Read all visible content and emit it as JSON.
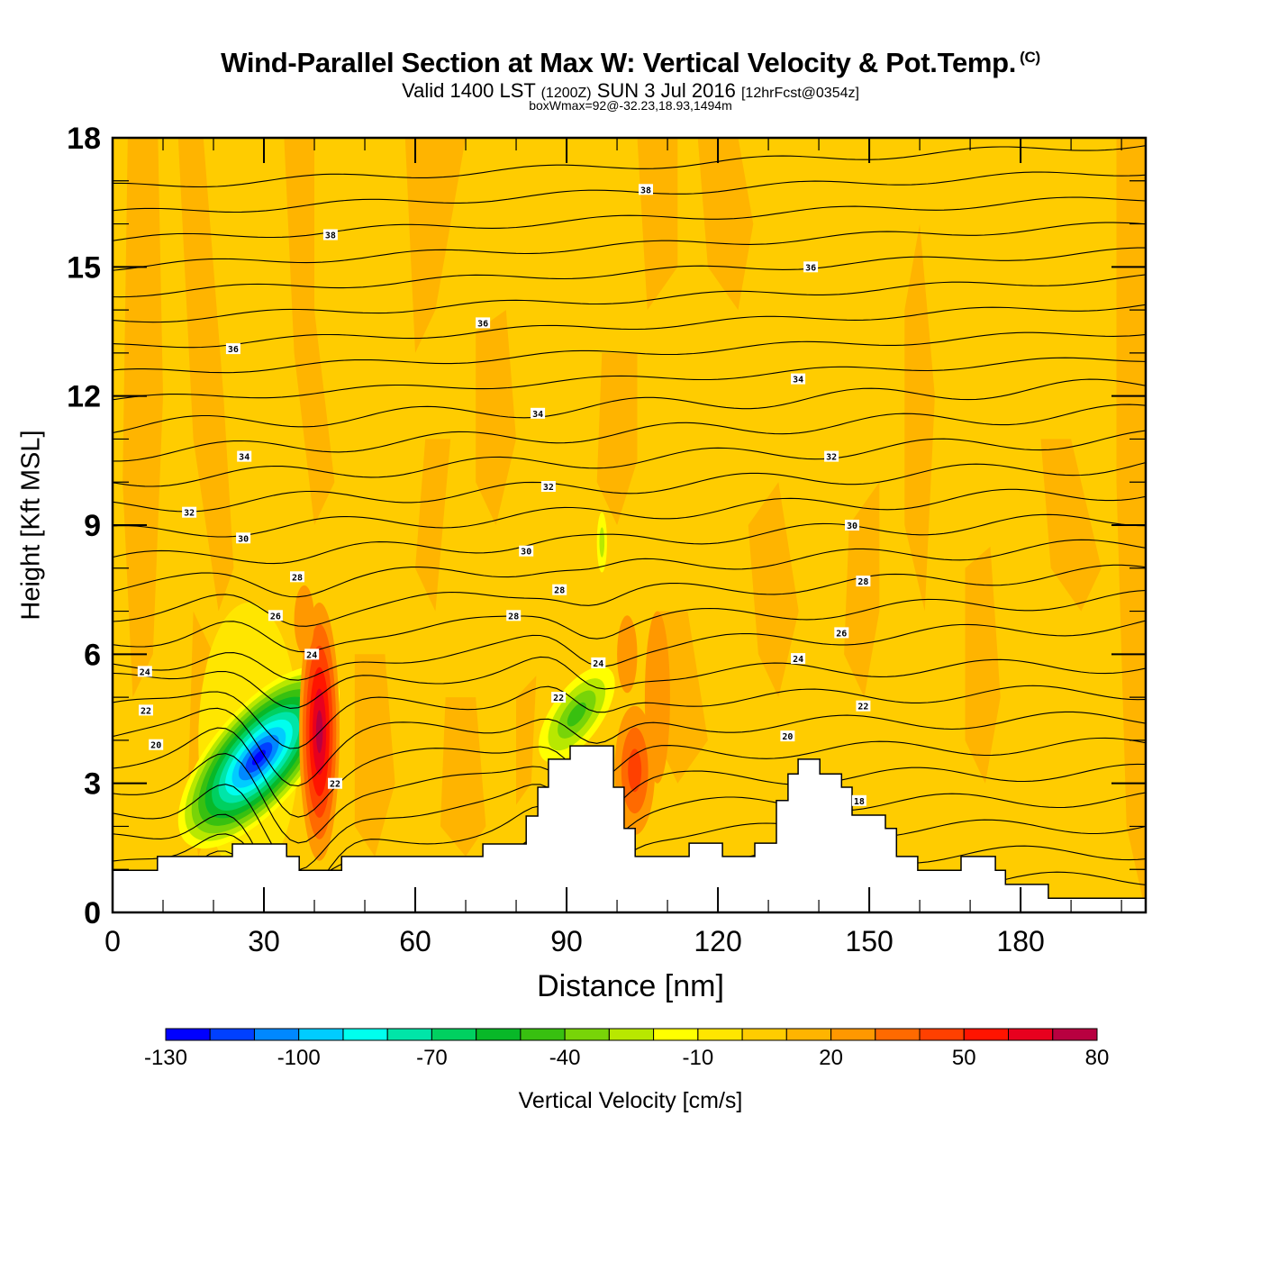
{
  "header": {
    "title": "Wind-Parallel Section at Max W: Vertical Velocity & Pot.Temp.",
    "copyright": "(C)",
    "valid_prefix": "Valid 1400 LST",
    "valid_utc": "(1200Z)",
    "valid_date": "SUN 3 Jul 2016",
    "forecast": "[12hrFcst@0354z]",
    "boxwmax": "boxWmax=92@-32.23,18.93,1494m"
  },
  "chart_data": {
    "type": "heatmap",
    "title": "Wind-Parallel Section at Max W: Vertical Velocity & Pot.Temp.",
    "xlabel": "Distance [nm]",
    "ylabel": "Height [Kft MSL]",
    "xlim": [
      0,
      204.8
    ],
    "ylim": [
      0,
      18
    ],
    "x_ticks": [
      "0",
      "30",
      "60",
      "90",
      "120",
      "150",
      "180"
    ],
    "x_tick_values": [
      0,
      30,
      60,
      90,
      120,
      150,
      180
    ],
    "y_ticks": [
      "0",
      "3",
      "6",
      "9",
      "12",
      "15",
      "18"
    ],
    "y_tick_values": [
      0,
      3,
      6,
      9,
      12,
      15,
      18
    ],
    "colorbar": {
      "title": "Vertical Velocity [cm/s]",
      "min": -130,
      "max": 80,
      "step": 10,
      "tick_labels": [
        "-130",
        "-100",
        "-70",
        "-40",
        "-10",
        "20",
        "50",
        "80"
      ],
      "tick_values": [
        -130,
        -100,
        -70,
        -40,
        -10,
        20,
        50,
        80
      ],
      "colors": [
        "#0000ff",
        "#0040ff",
        "#0088ff",
        "#00ccff",
        "#00ffee",
        "#00e5a8",
        "#00d060",
        "#08b828",
        "#38c010",
        "#78d408",
        "#b8e800",
        "#ffff00",
        "#ffe600",
        "#ffcc00",
        "#ffb400",
        "#ff9800",
        "#ff6a00",
        "#ff4000",
        "#ff1400",
        "#e8001e",
        "#b80040"
      ]
    },
    "background_velocity_cm_s": 0,
    "velocity_features": [
      {
        "name": "downdraft-core",
        "x_nm": 33,
        "h_kft": 2.8,
        "min_cm_s": -130
      },
      {
        "name": "updraft-core",
        "x_nm": 41,
        "h_kft": 4.5,
        "max_cm_s": 70
      },
      {
        "name": "downdraft-mid",
        "x_nm": 92,
        "h_kft": 4.5,
        "min_cm_s": -50
      },
      {
        "name": "updraft-lee",
        "x_nm": 103,
        "h_kft": 3.5,
        "max_cm_s": 40
      }
    ],
    "contour_labels": [
      {
        "text": "38",
        "x_nm": 43.2,
        "h_kft": 15.75
      },
      {
        "text": "38",
        "x_nm": 105.7,
        "h_kft": 16.8
      },
      {
        "text": "36",
        "x_nm": 23.9,
        "h_kft": 13.1
      },
      {
        "text": "36",
        "x_nm": 73.4,
        "h_kft": 13.7
      },
      {
        "text": "36",
        "x_nm": 138.4,
        "h_kft": 15.0
      },
      {
        "text": "34",
        "x_nm": 26.1,
        "h_kft": 10.6
      },
      {
        "text": "34",
        "x_nm": 84.3,
        "h_kft": 11.6
      },
      {
        "text": "34",
        "x_nm": 135.9,
        "h_kft": 12.4
      },
      {
        "text": "32",
        "x_nm": 15.2,
        "h_kft": 9.3
      },
      {
        "text": "32",
        "x_nm": 86.4,
        "h_kft": 9.9
      },
      {
        "text": "32",
        "x_nm": 142.5,
        "h_kft": 10.6
      },
      {
        "text": "30",
        "x_nm": 25.9,
        "h_kft": 8.7
      },
      {
        "text": "30",
        "x_nm": 82.0,
        "h_kft": 8.4
      },
      {
        "text": "30",
        "x_nm": 146.6,
        "h_kft": 9.0
      },
      {
        "text": "28",
        "x_nm": 36.6,
        "h_kft": 7.8
      },
      {
        "text": "28",
        "x_nm": 88.6,
        "h_kft": 7.5
      },
      {
        "text": "28",
        "x_nm": 79.5,
        "h_kft": 6.9
      },
      {
        "text": "28",
        "x_nm": 148.8,
        "h_kft": 7.7
      },
      {
        "text": "26",
        "x_nm": 32.3,
        "h_kft": 6.9
      },
      {
        "text": "26",
        "x_nm": 144.5,
        "h_kft": 6.5
      },
      {
        "text": "24",
        "x_nm": 6.4,
        "h_kft": 5.6
      },
      {
        "text": "24",
        "x_nm": 39.5,
        "h_kft": 6.0
      },
      {
        "text": "24",
        "x_nm": 96.3,
        "h_kft": 5.8
      },
      {
        "text": "24",
        "x_nm": 135.9,
        "h_kft": 5.9
      },
      {
        "text": "22",
        "x_nm": 6.6,
        "h_kft": 4.7
      },
      {
        "text": "22",
        "x_nm": 44.1,
        "h_kft": 3.0
      },
      {
        "text": "22",
        "x_nm": 88.4,
        "h_kft": 5.0
      },
      {
        "text": "22",
        "x_nm": 148.8,
        "h_kft": 4.8
      },
      {
        "text": "20",
        "x_nm": 8.6,
        "h_kft": 3.9
      },
      {
        "text": "20",
        "x_nm": 133.8,
        "h_kft": 4.1
      },
      {
        "text": "18",
        "x_nm": 148.0,
        "h_kft": 2.6
      }
    ],
    "terrain_kft": [
      [
        0,
        0.98
      ],
      [
        8.9,
        0.98
      ],
      [
        8.9,
        1.3
      ],
      [
        23.75,
        1.3
      ],
      [
        23.75,
        1.59
      ],
      [
        34.5,
        1.59
      ],
      [
        34.5,
        1.3
      ],
      [
        37,
        1.3
      ],
      [
        37,
        0.98
      ],
      [
        45.4,
        0.98
      ],
      [
        45.4,
        1.3
      ],
      [
        73.4,
        1.3
      ],
      [
        73.4,
        1.59
      ],
      [
        82,
        1.59
      ],
      [
        82,
        2.24
      ],
      [
        84.3,
        2.24
      ],
      [
        84.3,
        2.91
      ],
      [
        86.4,
        2.91
      ],
      [
        86.4,
        3.56
      ],
      [
        90.7,
        3.56
      ],
      [
        90.7,
        3.87
      ],
      [
        99.3,
        3.87
      ],
      [
        99.3,
        2.91
      ],
      [
        101.4,
        2.91
      ],
      [
        101.4,
        1.95
      ],
      [
        103.6,
        1.95
      ],
      [
        103.6,
        1.3
      ],
      [
        114.3,
        1.3
      ],
      [
        114.3,
        1.61
      ],
      [
        120.9,
        1.61
      ],
      [
        120.9,
        1.3
      ],
      [
        127.3,
        1.3
      ],
      [
        127.3,
        1.61
      ],
      [
        131.6,
        1.61
      ],
      [
        131.6,
        2.6
      ],
      [
        133.9,
        2.6
      ],
      [
        133.9,
        3.22
      ],
      [
        135.9,
        3.22
      ],
      [
        135.9,
        3.56
      ],
      [
        140.2,
        3.56
      ],
      [
        140.2,
        3.22
      ],
      [
        144.5,
        3.22
      ],
      [
        144.5,
        2.91
      ],
      [
        146.6,
        2.91
      ],
      [
        146.6,
        2.26
      ],
      [
        153.2,
        2.26
      ],
      [
        153.2,
        1.95
      ],
      [
        155.4,
        1.95
      ],
      [
        155.4,
        1.3
      ],
      [
        159.6,
        1.3
      ],
      [
        159.6,
        0.98
      ],
      [
        168.2,
        0.98
      ],
      [
        168.2,
        1.3
      ],
      [
        175,
        1.3
      ],
      [
        175,
        0.98
      ],
      [
        177,
        0.98
      ],
      [
        177,
        0.65
      ],
      [
        185.5,
        0.65
      ],
      [
        185.5,
        0.33
      ],
      [
        204.8,
        0.33
      ]
    ]
  }
}
